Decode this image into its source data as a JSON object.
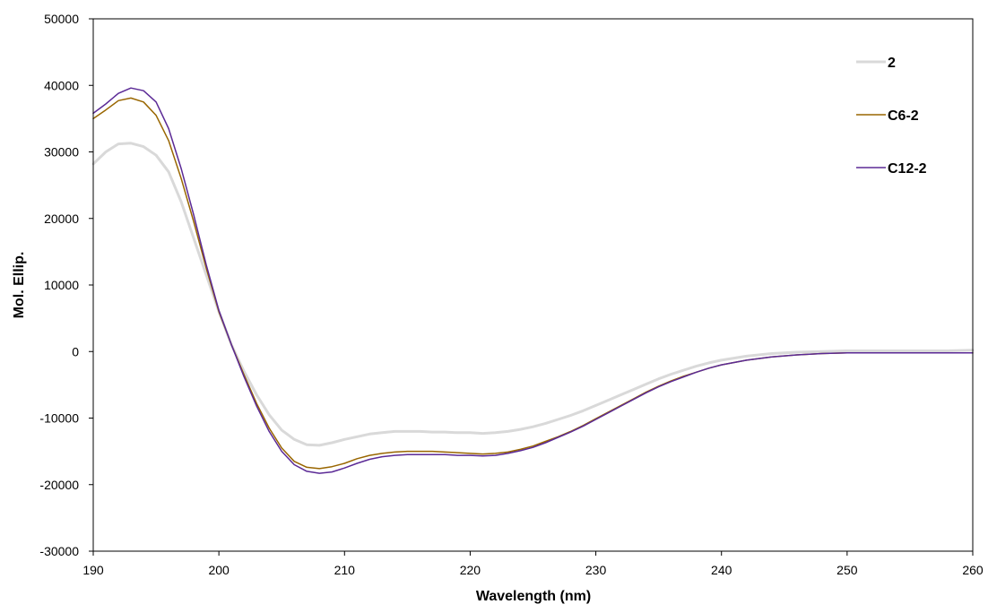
{
  "chart_data": {
    "type": "line",
    "title": "",
    "xlabel": "Wavelength (nm)",
    "ylabel": "Mol. Ellip.",
    "xlim": [
      190,
      260
    ],
    "ylim": [
      -30000,
      50000
    ],
    "x_ticks": [
      190,
      200,
      210,
      220,
      230,
      240,
      250,
      260
    ],
    "y_ticks": [
      50000,
      40000,
      30000,
      20000,
      10000,
      0,
      -10000,
      -20000,
      -30000
    ],
    "grid": false,
    "legend_position": "top-right",
    "series": [
      {
        "name": "2",
        "color": "#d9d9d9",
        "points": [
          [
            190,
            28200
          ],
          [
            191,
            30000
          ],
          [
            192,
            31200
          ],
          [
            193,
            31300
          ],
          [
            194,
            30800
          ],
          [
            195,
            29500
          ],
          [
            196,
            27000
          ],
          [
            197,
            22500
          ],
          [
            198,
            17000
          ],
          [
            199,
            11500
          ],
          [
            200,
            6000
          ],
          [
            201,
            1000
          ],
          [
            202,
            -3000
          ],
          [
            203,
            -6500
          ],
          [
            204,
            -9500
          ],
          [
            205,
            -11800
          ],
          [
            206,
            -13200
          ],
          [
            207,
            -14000
          ],
          [
            208,
            -14100
          ],
          [
            209,
            -13700
          ],
          [
            210,
            -13200
          ],
          [
            211,
            -12800
          ],
          [
            212,
            -12400
          ],
          [
            213,
            -12200
          ],
          [
            214,
            -12000
          ],
          [
            215,
            -12000
          ],
          [
            216,
            -12000
          ],
          [
            217,
            -12100
          ],
          [
            218,
            -12100
          ],
          [
            219,
            -12200
          ],
          [
            220,
            -12200
          ],
          [
            221,
            -12300
          ],
          [
            222,
            -12200
          ],
          [
            223,
            -12000
          ],
          [
            224,
            -11700
          ],
          [
            225,
            -11300
          ],
          [
            226,
            -10800
          ],
          [
            227,
            -10200
          ],
          [
            228,
            -9600
          ],
          [
            229,
            -8900
          ],
          [
            230,
            -8100
          ],
          [
            231,
            -7300
          ],
          [
            232,
            -6500
          ],
          [
            233,
            -5700
          ],
          [
            234,
            -4900
          ],
          [
            235,
            -4100
          ],
          [
            236,
            -3400
          ],
          [
            237,
            -2800
          ],
          [
            238,
            -2200
          ],
          [
            239,
            -1700
          ],
          [
            240,
            -1300
          ],
          [
            242,
            -700
          ],
          [
            244,
            -300
          ],
          [
            246,
            -100
          ],
          [
            248,
            0
          ],
          [
            250,
            100
          ],
          [
            252,
            100
          ],
          [
            254,
            100
          ],
          [
            256,
            100
          ],
          [
            258,
            100
          ],
          [
            260,
            200
          ]
        ]
      },
      {
        "name": "C6-2",
        "color": "#996600",
        "points": [
          [
            190,
            35000
          ],
          [
            191,
            36300
          ],
          [
            192,
            37700
          ],
          [
            193,
            38100
          ],
          [
            194,
            37500
          ],
          [
            195,
            35500
          ],
          [
            196,
            31700
          ],
          [
            197,
            26000
          ],
          [
            198,
            19500
          ],
          [
            199,
            12500
          ],
          [
            200,
            6000
          ],
          [
            201,
            1000
          ],
          [
            202,
            -3500
          ],
          [
            203,
            -7800
          ],
          [
            204,
            -11500
          ],
          [
            205,
            -14500
          ],
          [
            206,
            -16500
          ],
          [
            207,
            -17400
          ],
          [
            208,
            -17600
          ],
          [
            209,
            -17300
          ],
          [
            210,
            -16800
          ],
          [
            211,
            -16100
          ],
          [
            212,
            -15600
          ],
          [
            213,
            -15300
          ],
          [
            214,
            -15100
          ],
          [
            215,
            -15000
          ],
          [
            216,
            -15000
          ],
          [
            217,
            -15000
          ],
          [
            218,
            -15100
          ],
          [
            219,
            -15200
          ],
          [
            220,
            -15300
          ],
          [
            221,
            -15400
          ],
          [
            222,
            -15300
          ],
          [
            223,
            -15100
          ],
          [
            224,
            -14700
          ],
          [
            225,
            -14200
          ],
          [
            226,
            -13500
          ],
          [
            227,
            -12800
          ],
          [
            228,
            -12000
          ],
          [
            229,
            -11100
          ],
          [
            230,
            -10100
          ],
          [
            231,
            -9100
          ],
          [
            232,
            -8100
          ],
          [
            233,
            -7100
          ],
          [
            234,
            -6100
          ],
          [
            235,
            -5200
          ],
          [
            236,
            -4400
          ],
          [
            237,
            -3700
          ],
          [
            238,
            -3100
          ],
          [
            239,
            -2500
          ],
          [
            240,
            -2000
          ],
          [
            242,
            -1300
          ],
          [
            244,
            -800
          ],
          [
            246,
            -500
          ],
          [
            248,
            -300
          ],
          [
            250,
            -200
          ],
          [
            252,
            -200
          ],
          [
            254,
            -200
          ],
          [
            256,
            -200
          ],
          [
            258,
            -200
          ],
          [
            260,
            -200
          ]
        ]
      },
      {
        "name": "C12-2",
        "color": "#5b2a96",
        "points": [
          [
            190,
            35800
          ],
          [
            191,
            37200
          ],
          [
            192,
            38800
          ],
          [
            193,
            39600
          ],
          [
            194,
            39200
          ],
          [
            195,
            37500
          ],
          [
            196,
            33500
          ],
          [
            197,
            27500
          ],
          [
            198,
            20500
          ],
          [
            199,
            13000
          ],
          [
            200,
            6200
          ],
          [
            201,
            1000
          ],
          [
            202,
            -3800
          ],
          [
            203,
            -8200
          ],
          [
            204,
            -12000
          ],
          [
            205,
            -15000
          ],
          [
            206,
            -17000
          ],
          [
            207,
            -18000
          ],
          [
            208,
            -18300
          ],
          [
            209,
            -18100
          ],
          [
            210,
            -17500
          ],
          [
            211,
            -16800
          ],
          [
            212,
            -16200
          ],
          [
            213,
            -15800
          ],
          [
            214,
            -15600
          ],
          [
            215,
            -15500
          ],
          [
            216,
            -15500
          ],
          [
            217,
            -15500
          ],
          [
            218,
            -15500
          ],
          [
            219,
            -15600
          ],
          [
            220,
            -15600
          ],
          [
            221,
            -15700
          ],
          [
            222,
            -15600
          ],
          [
            223,
            -15300
          ],
          [
            224,
            -14900
          ],
          [
            225,
            -14400
          ],
          [
            226,
            -13700
          ],
          [
            227,
            -12900
          ],
          [
            228,
            -12100
          ],
          [
            229,
            -11200
          ],
          [
            230,
            -10200
          ],
          [
            231,
            -9200
          ],
          [
            232,
            -8200
          ],
          [
            233,
            -7200
          ],
          [
            234,
            -6200
          ],
          [
            235,
            -5300
          ],
          [
            236,
            -4500
          ],
          [
            237,
            -3800
          ],
          [
            238,
            -3100
          ],
          [
            239,
            -2500
          ],
          [
            240,
            -2000
          ],
          [
            242,
            -1300
          ],
          [
            244,
            -800
          ],
          [
            246,
            -500
          ],
          [
            248,
            -300
          ],
          [
            250,
            -200
          ],
          [
            252,
            -200
          ],
          [
            254,
            -200
          ],
          [
            256,
            -200
          ],
          [
            258,
            -200
          ],
          [
            260,
            -200
          ]
        ]
      }
    ]
  }
}
